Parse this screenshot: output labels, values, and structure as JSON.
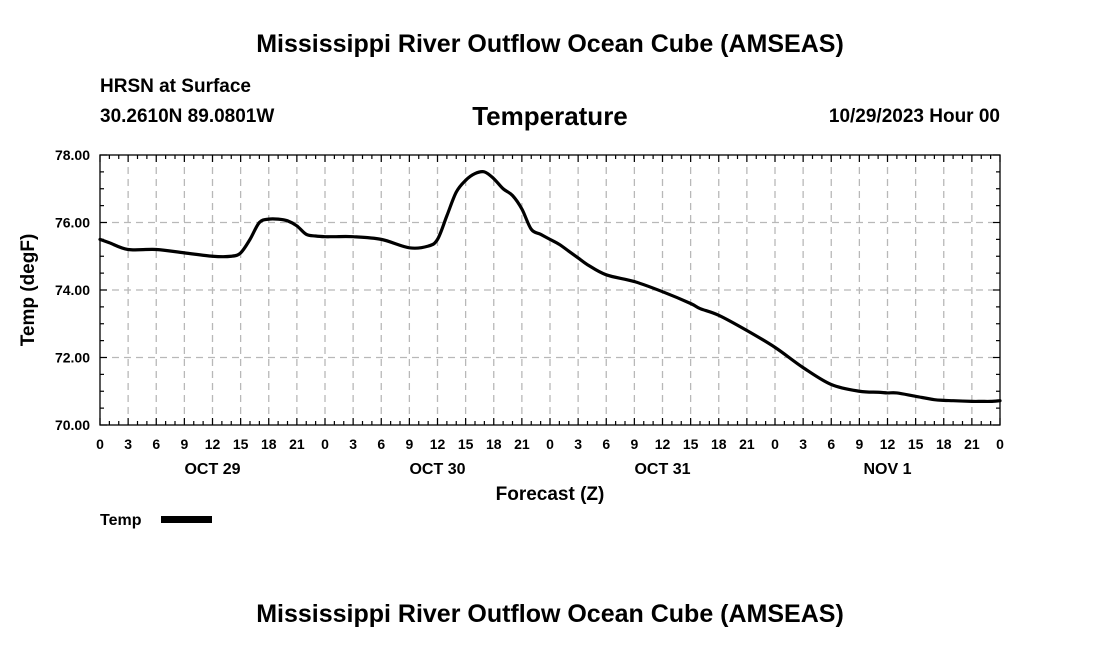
{
  "header": {
    "title_top": "Mississippi River Outflow Ocean Cube (AMSEAS)",
    "station": "HRSN at Surface",
    "coords": "30.2610N  89.0801W",
    "datetime": "10/29/2023 Hour 00",
    "title_bottom": "Mississippi River Outflow Ocean Cube (AMSEAS)"
  },
  "chart_data": {
    "type": "line",
    "title": "Temperature",
    "xlabel": "Forecast (Z)",
    "ylabel": "Temp (degF)",
    "ylim": [
      70,
      78
    ],
    "xlim": [
      0,
      96
    ],
    "y_ticks": [
      "70.00",
      "72.00",
      "74.00",
      "76.00",
      "78.00"
    ],
    "y_tick_values": [
      70,
      72,
      74,
      76,
      78
    ],
    "x_tick_labels": [
      "0",
      "3",
      "6",
      "9",
      "12",
      "15",
      "18",
      "21",
      "0",
      "3",
      "6",
      "9",
      "12",
      "15",
      "18",
      "21",
      "0",
      "3",
      "6",
      "9",
      "12",
      "15",
      "18",
      "21",
      "0",
      "3",
      "6",
      "9",
      "12",
      "15",
      "18",
      "21",
      "0"
    ],
    "day_labels": [
      {
        "label": "OCT 29",
        "hour": 12
      },
      {
        "label": "OCT 30",
        "hour": 36
      },
      {
        "label": "OCT 31",
        "hour": 60
      },
      {
        "label": "NOV 1",
        "hour": 84
      }
    ],
    "grid": true,
    "series": [
      {
        "name": "Temp",
        "color": "#000000",
        "x": [
          0,
          1,
          3,
          6,
          9,
          12,
          14,
          15,
          16,
          17,
          18,
          19,
          20,
          21,
          22,
          23,
          24,
          25,
          27,
          30,
          33,
          35,
          36,
          37,
          38,
          39,
          40,
          41,
          42,
          43,
          44,
          45,
          46,
          47,
          48,
          49,
          50,
          51,
          52,
          54,
          57,
          60,
          63,
          64,
          66,
          69,
          72,
          75,
          78,
          81,
          83,
          84,
          85,
          87,
          89,
          90,
          91,
          93,
          94,
          95,
          96
        ],
        "values": [
          75.5,
          75.4,
          75.2,
          75.2,
          75.1,
          75.0,
          75.0,
          75.1,
          75.5,
          76.0,
          76.1,
          76.1,
          76.05,
          75.9,
          75.65,
          75.6,
          75.58,
          75.58,
          75.58,
          75.5,
          75.25,
          75.3,
          75.5,
          76.2,
          76.9,
          77.25,
          77.45,
          77.5,
          77.3,
          77.0,
          76.8,
          76.4,
          75.8,
          75.65,
          75.5,
          75.35,
          75.15,
          74.95,
          74.75,
          74.45,
          74.25,
          73.95,
          73.6,
          73.45,
          73.25,
          72.8,
          72.3,
          71.7,
          71.2,
          71.0,
          70.97,
          70.95,
          70.95,
          70.85,
          70.75,
          70.73,
          70.72,
          70.7,
          70.7,
          70.7,
          70.72
        ]
      }
    ],
    "legend": {
      "label": "Temp",
      "placement": "bottom-left"
    }
  }
}
